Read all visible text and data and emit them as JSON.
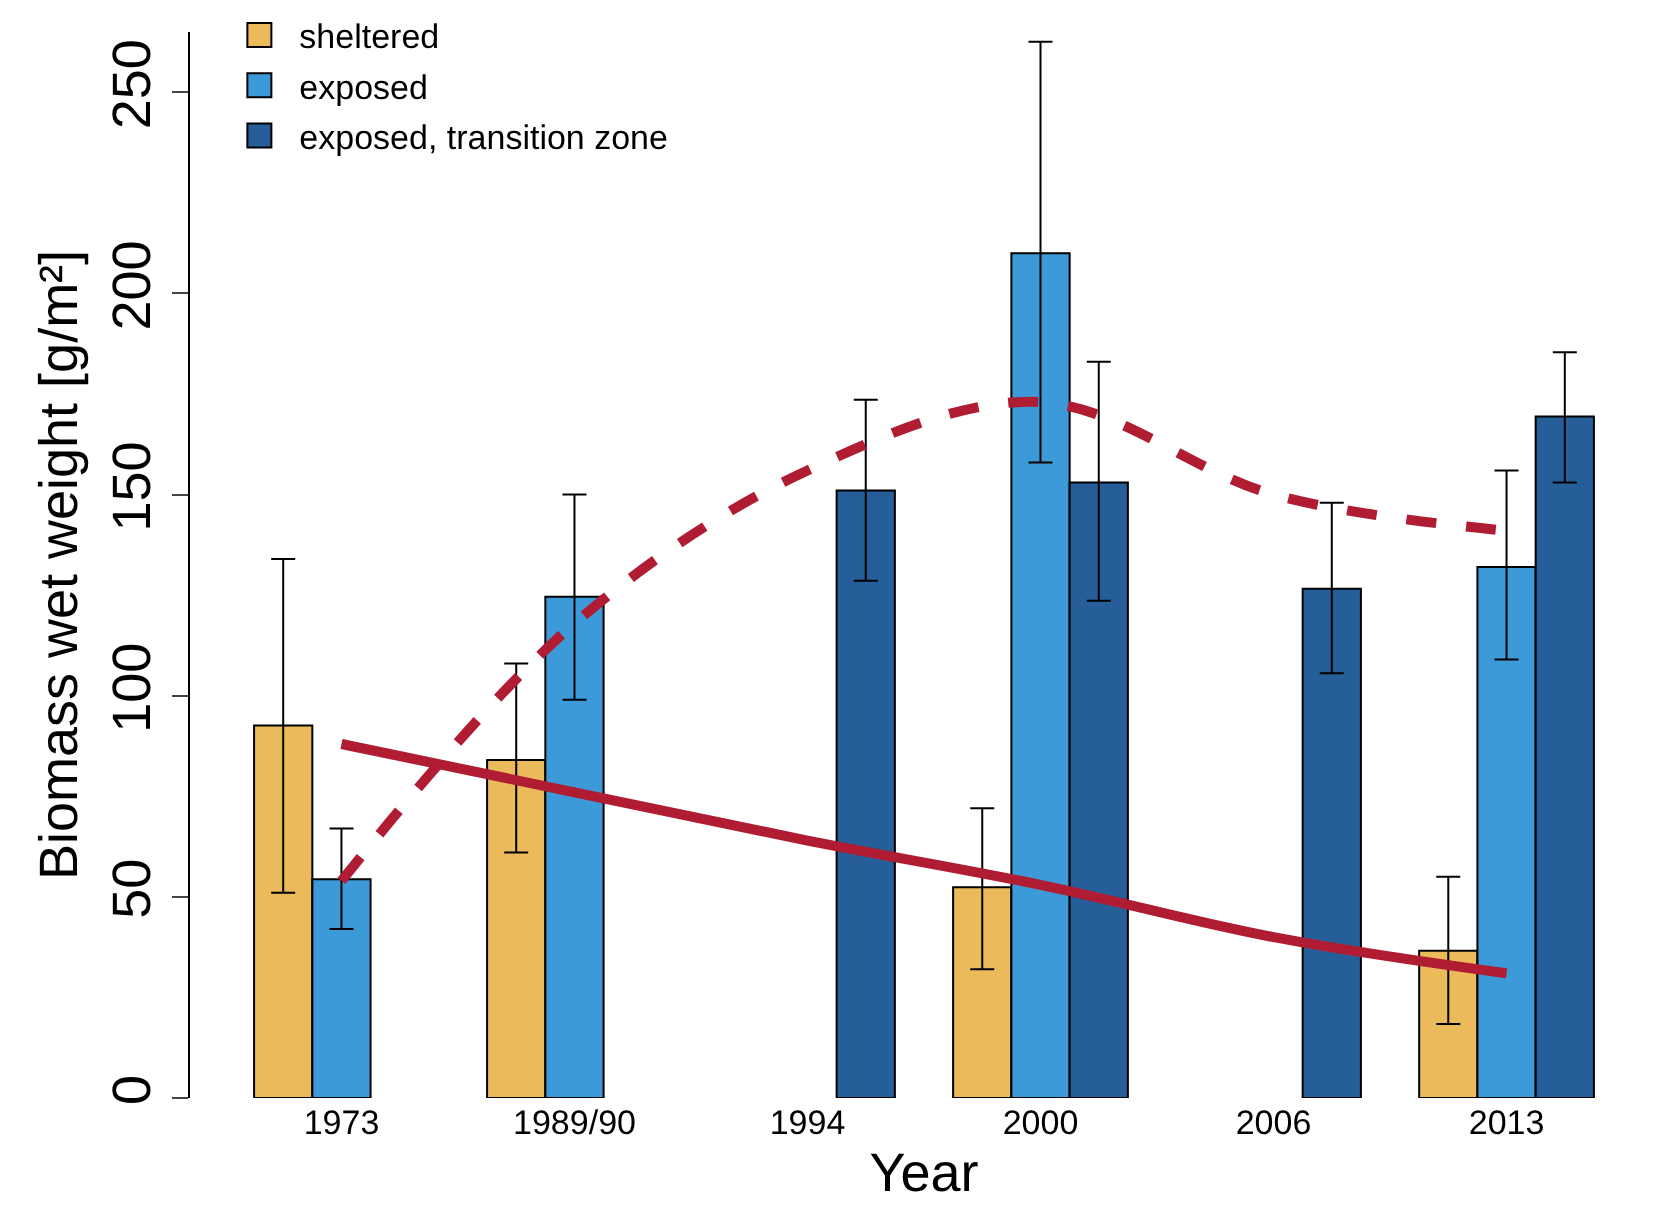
{
  "chart_data": {
    "type": "bar",
    "xlabel": "Year",
    "ylabel": "Biomass wet weight [g/m²]",
    "categories": [
      "1973",
      "1989/90",
      "1994",
      "2000",
      "2006",
      "2013"
    ],
    "ylim": [
      0,
      265
    ],
    "yticks": [
      0,
      50,
      100,
      150,
      200,
      250
    ],
    "legend": "top left",
    "series": [
      {
        "name": "sheltered",
        "color": "#ebbb5b",
        "values": [
          92.6,
          84,
          null,
          52.4,
          null,
          36.6
        ],
        "errors": [
          [
            51,
            134
          ],
          [
            61,
            108
          ],
          null,
          [
            32,
            72
          ],
          null,
          [
            18.4,
            55
          ]
        ]
      },
      {
        "name": "exposed",
        "color": "#3d9ad9",
        "values": [
          54.4,
          124.6,
          null,
          210,
          null,
          132
        ],
        "errors": [
          [
            42,
            67
          ],
          [
            99,
            150
          ],
          null,
          [
            158,
            262.6
          ],
          null,
          [
            109,
            156
          ]
        ]
      },
      {
        "name": "exposed, transition zone",
        "color": "#255e98",
        "values": [
          null,
          null,
          151,
          153,
          126.6,
          169.4
        ],
        "errors": [
          null,
          null,
          [
            128.6,
            173.6
          ],
          [
            123.6,
            183
          ],
          [
            105.6,
            148
          ],
          [
            153,
            185.4
          ]
        ]
      },
      {
        "type": "line",
        "color": "#b01c32",
        "line_style": "solid",
        "values": [
          88,
          76,
          64,
          53,
          40,
          31
        ]
      },
      {
        "type": "line",
        "color": "#b01c32",
        "line_style": "dashed",
        "values": [
          54,
          118,
          156,
          173,
          150,
          141
        ]
      }
    ]
  }
}
